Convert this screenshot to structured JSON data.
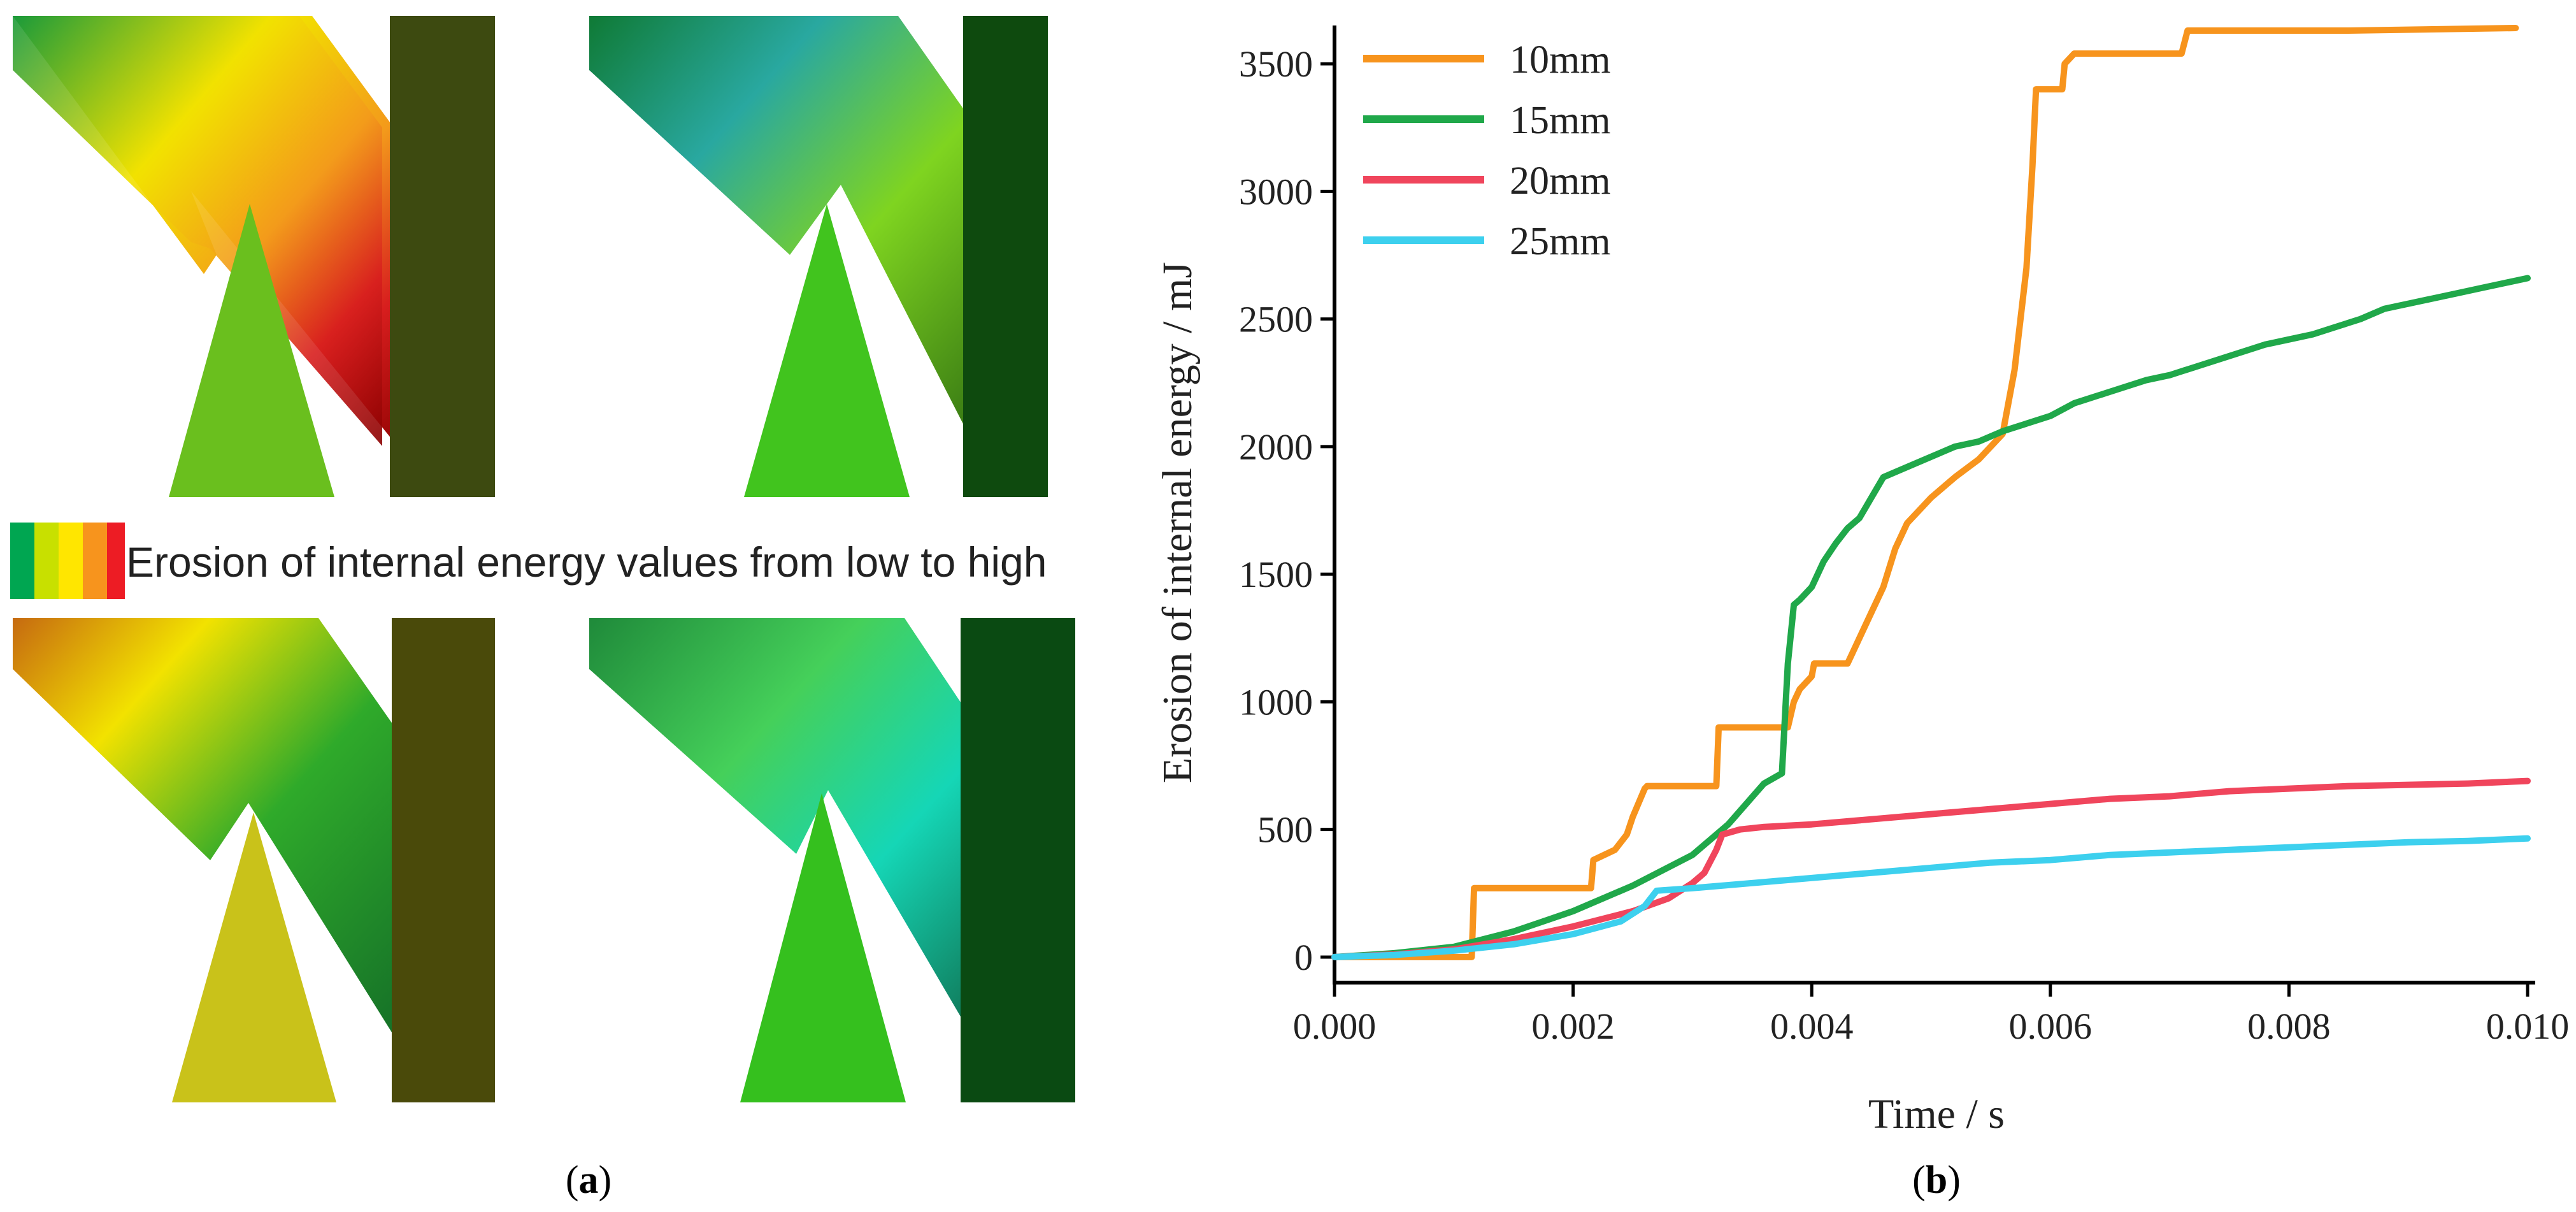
{
  "panel_a": {
    "legend_caption": "Erosion of internal energy values from low to high",
    "legend_colors": [
      "#00a651",
      "#c8e000",
      "#ffe600",
      "#f7941d",
      "#ed1c24"
    ],
    "label_prefix": "(",
    "label_letter": "a",
    "label_suffix": ")"
  },
  "panel_b": {
    "label_prefix": "(",
    "label_letter": "b",
    "label_suffix": ")"
  },
  "chart_data": {
    "type": "line",
    "title": "",
    "xlabel": "Time / s",
    "ylabel": "Erosion of internal energy / mJ",
    "xlim": [
      0.0,
      0.01
    ],
    "ylim": [
      -100,
      3650
    ],
    "xticks": [
      "0.000",
      "0.002",
      "0.004",
      "0.006",
      "0.008",
      "0.010"
    ],
    "yticks": [
      "0",
      "500",
      "1000",
      "1500",
      "2000",
      "2500",
      "3000",
      "3500"
    ],
    "legend_position": "top-left",
    "grid": false,
    "series": [
      {
        "name": "10mm",
        "color": "#f7941d",
        "x": [
          0,
          0.00115,
          0.00117,
          0.00215,
          0.00217,
          0.00235,
          0.00245,
          0.0025,
          0.0026,
          0.00262,
          0.0032,
          0.00322,
          0.0038,
          0.00385,
          0.0039,
          0.004,
          0.00402,
          0.0043,
          0.0044,
          0.0045,
          0.0046,
          0.0047,
          0.0048,
          0.0049,
          0.005,
          0.0052,
          0.0054,
          0.0056,
          0.0057,
          0.0058,
          0.00585,
          0.00588,
          0.0061,
          0.00612,
          0.0062,
          0.0065,
          0.0068,
          0.0071,
          0.00715,
          0.0075,
          0.0085,
          0.0099
        ],
        "y": [
          0,
          0,
          270,
          270,
          380,
          420,
          480,
          550,
          660,
          670,
          670,
          900,
          900,
          1000,
          1050,
          1100,
          1150,
          1150,
          1250,
          1350,
          1450,
          1600,
          1700,
          1750,
          1800,
          1880,
          1950,
          2050,
          2300,
          2700,
          3100,
          3400,
          3400,
          3500,
          3540,
          3540,
          3540,
          3540,
          3630,
          3630,
          3630,
          3640
        ]
      },
      {
        "name": "15mm",
        "color": "#20a84a",
        "x": [
          0,
          0.0005,
          0.001,
          0.0015,
          0.002,
          0.0025,
          0.003,
          0.0033,
          0.0036,
          0.00375,
          0.0038,
          0.00385,
          0.0039,
          0.004,
          0.0041,
          0.0042,
          0.0043,
          0.0044,
          0.0045,
          0.0046,
          0.0047,
          0.0048,
          0.005,
          0.0052,
          0.0054,
          0.0056,
          0.0058,
          0.006,
          0.0062,
          0.0064,
          0.0066,
          0.0068,
          0.007,
          0.0072,
          0.0074,
          0.0076,
          0.0078,
          0.008,
          0.0082,
          0.0084,
          0.0086,
          0.0088,
          0.009,
          0.0092,
          0.0094,
          0.0096,
          0.0098,
          0.01
        ],
        "y": [
          0,
          15,
          40,
          100,
          180,
          280,
          400,
          520,
          680,
          720,
          1150,
          1380,
          1400,
          1450,
          1550,
          1620,
          1680,
          1720,
          1800,
          1880,
          1900,
          1920,
          1960,
          2000,
          2020,
          2060,
          2090,
          2120,
          2170,
          2200,
          2230,
          2260,
          2280,
          2310,
          2340,
          2370,
          2400,
          2420,
          2440,
          2470,
          2500,
          2540,
          2560,
          2580,
          2600,
          2620,
          2640,
          2660
        ]
      },
      {
        "name": "20mm",
        "color": "#f0455c",
        "x": [
          0,
          0.0005,
          0.001,
          0.0015,
          0.002,
          0.0025,
          0.0028,
          0.003,
          0.0031,
          0.0032,
          0.00325,
          0.0034,
          0.0036,
          0.004,
          0.0045,
          0.005,
          0.0055,
          0.006,
          0.0065,
          0.007,
          0.0075,
          0.008,
          0.0085,
          0.009,
          0.0095,
          0.01
        ],
        "y": [
          0,
          10,
          30,
          70,
          120,
          180,
          230,
          290,
          330,
          420,
          480,
          500,
          510,
          520,
          540,
          560,
          580,
          600,
          620,
          630,
          650,
          660,
          670,
          675,
          680,
          690
        ]
      },
      {
        "name": "25mm",
        "color": "#3dd0ee",
        "x": [
          0,
          0.0005,
          0.001,
          0.0015,
          0.002,
          0.0024,
          0.0026,
          0.0027,
          0.003,
          0.0035,
          0.004,
          0.0045,
          0.005,
          0.0055,
          0.006,
          0.0065,
          0.007,
          0.0075,
          0.008,
          0.0085,
          0.009,
          0.0095,
          0.01
        ],
        "y": [
          0,
          8,
          25,
          50,
          90,
          140,
          200,
          260,
          270,
          290,
          310,
          330,
          350,
          370,
          380,
          400,
          410,
          420,
          430,
          440,
          450,
          455,
          465
        ]
      }
    ]
  }
}
